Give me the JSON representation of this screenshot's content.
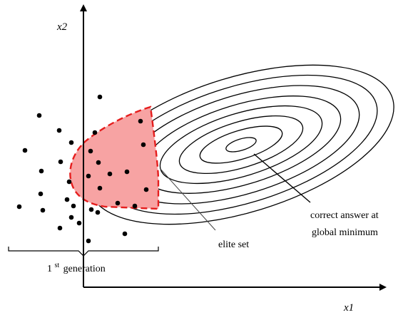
{
  "labels": {
    "y_axis": "x2",
    "x_axis": "x1",
    "elite": "elite set",
    "answer_line1": "correct answer at",
    "answer_line2": "global minimum",
    "generation_sup": "st",
    "generation_num": "1",
    "generation_word": "generation"
  },
  "colors": {
    "elite_fill": "#f7a3a3",
    "elite_stroke": "#e51d1d",
    "ink": "#000000"
  },
  "contour_count": 8,
  "population_points": 32
}
